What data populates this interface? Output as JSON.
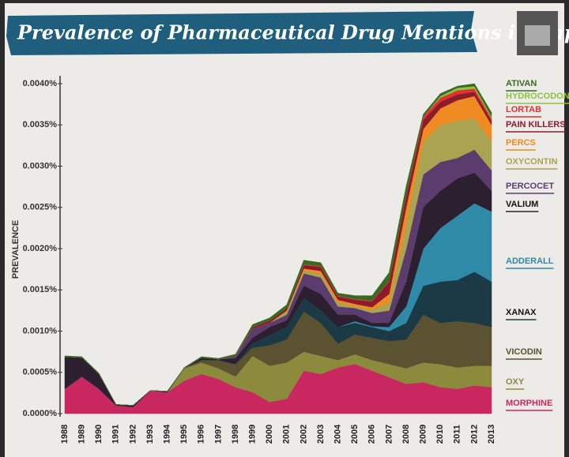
{
  "chart_data": {
    "type": "stacked_area",
    "title": "Prevalence of Pharmaceutical Drug Mentions in Rap Music",
    "y_label": "PREVALENCE",
    "categories": [
      "1988",
      "1989",
      "1990",
      "1991",
      "1992",
      "1993",
      "1994",
      "1995",
      "1996",
      "1997",
      "1998",
      "1999",
      "2000",
      "2001",
      "2002",
      "2003",
      "2004",
      "2005",
      "2006",
      "2007",
      "2008",
      "2009",
      "2010",
      "2011",
      "2012",
      "2013"
    ],
    "ylim": [
      0,
      0.004
    ],
    "yticks": [
      {
        "value": 0,
        "label": "0.0000%"
      },
      {
        "value": 0.0005,
        "label": "0.0005%"
      },
      {
        "value": 0.001,
        "label": "0.0010%"
      },
      {
        "value": 0.0015,
        "label": "0.0015%"
      },
      {
        "value": 0.002,
        "label": "0.0020%"
      },
      {
        "value": 0.0025,
        "label": "0.0025%"
      },
      {
        "value": 0.003,
        "label": "0.0030%"
      },
      {
        "value": 0.0035,
        "label": "0.0035%"
      },
      {
        "value": 0.004,
        "label": "0.0040%"
      }
    ],
    "series": [
      {
        "name": "MORPHINE",
        "color": "#c8285f",
        "values": [
          0.0003,
          0.00045,
          0.0003,
          0.0001,
          8e-05,
          0.00028,
          0.00026,
          0.0004,
          0.00048,
          0.00042,
          0.00032,
          0.00026,
          0.00014,
          0.00018,
          0.00052,
          0.00048,
          0.00056,
          0.0006,
          0.00052,
          0.00044,
          0.00036,
          0.00038,
          0.00032,
          0.0003,
          0.00034,
          0.00032
        ]
      },
      {
        "name": "OXY",
        "color": "#8c8a3c",
        "values": [
          0,
          0,
          0,
          0,
          0,
          0,
          0,
          0.00015,
          0.00014,
          0.00013,
          0.00013,
          0.00044,
          0.00044,
          0.00044,
          0.00023,
          0.00022,
          9e-05,
          0.00012,
          0.00013,
          0.00016,
          0.00019,
          0.00024,
          0.00028,
          0.00026,
          0.00024,
          0.00026
        ]
      },
      {
        "name": "VICODIN",
        "color": "#5b5232",
        "values": [
          0,
          0,
          0,
          0,
          0,
          0,
          0,
          0,
          3e-05,
          0.0001,
          0.00015,
          0.0001,
          0.00025,
          0.00028,
          0.00049,
          0.0004,
          0.0002,
          0.00024,
          0.00027,
          0.00028,
          0.00035,
          0.00058,
          0.0005,
          0.00056,
          0.00052,
          0.00047
        ]
      },
      {
        "name": "XANAX",
        "color": "#1b3a46",
        "values": [
          0,
          0,
          0,
          0,
          0,
          0,
          0,
          0,
          0,
          0,
          0,
          5e-05,
          0.00012,
          0.00015,
          0.00016,
          0.00015,
          0.0002,
          0.00014,
          0.00013,
          0.00012,
          0.0002,
          0.00035,
          0.0005,
          0.0005,
          0.00062,
          0.00055
        ]
      },
      {
        "name": "ADDERALL",
        "color": "#2f8aa8",
        "values": [
          0,
          0,
          0,
          0,
          0,
          0,
          0,
          0,
          0,
          0,
          0,
          0,
          0,
          0,
          0,
          0,
          0,
          2e-05,
          1e-05,
          5e-05,
          0.0002,
          0.00045,
          0.00065,
          0.00078,
          0.00083,
          0.00085
        ]
      },
      {
        "name": "VALIUM",
        "color": "#2b1f30",
        "values": [
          0.00039,
          0.00023,
          0.00018,
          1e-05,
          2e-05,
          0,
          1e-05,
          0,
          3e-05,
          1e-05,
          7e-05,
          7e-05,
          0.0001,
          8e-05,
          0.00015,
          0.0002,
          0.00015,
          8e-05,
          4e-05,
          5e-05,
          0.0003,
          0.0005,
          0.00045,
          0.00045,
          0.00037,
          0.00025
        ]
      },
      {
        "name": "PERCOCET",
        "color": "#5c3c6c",
        "values": [
          0,
          0,
          0,
          0,
          0,
          0,
          0,
          0,
          0,
          0,
          3e-05,
          0.00011,
          5e-05,
          7e-05,
          0.00015,
          0.0002,
          0.0001,
          8e-05,
          0.00012,
          0.00015,
          0.0004,
          0.0004,
          0.00035,
          0.00025,
          0.00028,
          0.00025
        ]
      },
      {
        "name": "OXYCONTIN",
        "color": "#a9a352",
        "values": [
          0,
          0,
          0,
          0,
          0,
          0,
          0,
          0,
          0,
          0,
          0,
          0,
          0,
          5e-05,
          3e-05,
          5e-05,
          5e-05,
          2e-05,
          4e-05,
          0.0001,
          0.0003,
          0.0004,
          0.00045,
          0.00045,
          0.00038,
          0.00035
        ]
      },
      {
        "name": "PERCS",
        "color": "#f08a22",
        "values": [
          0,
          0,
          0,
          0,
          0,
          0,
          0,
          0,
          0,
          0,
          0,
          0,
          0,
          0,
          3e-05,
          3e-05,
          3e-05,
          3e-05,
          3e-05,
          0.0001,
          0.0002,
          0.00015,
          0.0002,
          0.00025,
          0.00027,
          0.0002
        ]
      },
      {
        "name": "PAIN KILLERS",
        "color": "#8c1c2c",
        "values": [
          0,
          0,
          0,
          0,
          0,
          0,
          0,
          0,
          0,
          0,
          0,
          2e-05,
          3e-05,
          3e-05,
          4e-05,
          5e-05,
          4e-05,
          5e-05,
          7e-05,
          0.00015,
          0.00015,
          0.00011,
          8e-05,
          7e-05,
          5e-05,
          5e-05
        ]
      },
      {
        "name": "LORTAB",
        "color": "#e03232",
        "values": [
          0,
          0,
          0,
          0,
          0,
          0,
          0,
          0,
          0,
          0,
          0,
          0,
          0,
          0,
          1e-05,
          1e-05,
          1e-05,
          1e-05,
          1e-05,
          1e-05,
          1e-05,
          4e-05,
          5e-05,
          5e-05,
          4e-05,
          3e-05
        ]
      },
      {
        "name": "HYDROCODONE",
        "color": "#8cc43e",
        "values": [
          0,
          0,
          0,
          0,
          0,
          0,
          0,
          0,
          0,
          0,
          0,
          0,
          0,
          0,
          0,
          0,
          0,
          0,
          0,
          0,
          0,
          0,
          2e-05,
          3e-05,
          3e-05,
          2e-05
        ]
      },
      {
        "name": "ATIVAN",
        "color": "#3a6a22",
        "values": [
          1e-05,
          1e-05,
          1e-05,
          0,
          0,
          0,
          0,
          1e-05,
          1e-05,
          1e-05,
          2e-05,
          3e-05,
          3e-05,
          4e-05,
          5e-05,
          4e-05,
          3e-05,
          4e-05,
          6e-05,
          0.0001,
          0.0001,
          3e-05,
          3e-05,
          2e-05,
          3e-05,
          5e-05
        ]
      }
    ]
  }
}
